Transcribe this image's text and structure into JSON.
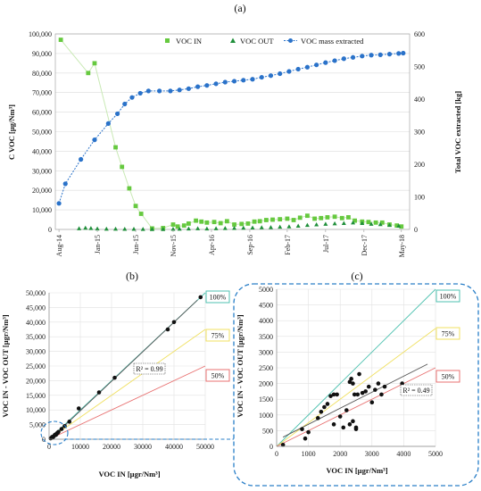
{
  "panel_labels": [
    "(a)",
    "(b)",
    "(c)"
  ],
  "colors": {
    "voc_in": "#66c93f",
    "voc_out": "#1f8f3a",
    "mass": "#2a72c9",
    "line100": "#4fc2b0",
    "line75": "#f0e060",
    "line50": "#e87070",
    "fit": "#555555",
    "dash_box": "#2a7fc8"
  },
  "chart_data": [
    {
      "type": "scatter",
      "panel": "(a)",
      "ylabel": "C VOC [µg/Nm³]",
      "y2label": "Total VOC extracted [kg]",
      "ylim": [
        0,
        100000
      ],
      "y2lim": [
        0,
        600
      ],
      "yticks": [
        "0",
        "10,000",
        "20,000",
        "30,000",
        "40,000",
        "50,000",
        "60,000",
        "70,000",
        "80,000",
        "90,000",
        "100,000"
      ],
      "y2ticks": [
        "0",
        "100",
        "200",
        "300",
        "400",
        "500",
        "600"
      ],
      "xlim": [
        2014.54,
        2018.42
      ],
      "xticks": [
        {
          "label": "Aug-14",
          "x": 2014.58
        },
        {
          "label": "Jan-15",
          "x": 2015.0
        },
        {
          "label": "Jun-15",
          "x": 2015.42
        },
        {
          "label": "Nov-15",
          "x": 2015.83
        },
        {
          "label": "Apr-16",
          "x": 2016.25
        },
        {
          "label": "Sep-16",
          "x": 2016.67
        },
        {
          "label": "Feb-17",
          "x": 2017.08
        },
        {
          "label": "Jul-17",
          "x": 2017.5
        },
        {
          "label": "Dec-17",
          "x": 2017.92
        },
        {
          "label": "May-18",
          "x": 2018.33
        }
      ],
      "legend": [
        "VOC IN",
        "VOC OUT",
        "VOC mass extracted"
      ],
      "series": [
        {
          "name": "VOC IN",
          "axis": "left",
          "marker": "square",
          "line": true,
          "points": [
            [
              2014.6,
              97000
            ],
            [
              2014.9,
              80000
            ],
            [
              2014.97,
              85000
            ],
            [
              2015.2,
              42000
            ],
            [
              2015.27,
              32000
            ],
            [
              2015.35,
              21000
            ],
            [
              2015.42,
              12000
            ],
            [
              2015.48,
              8000
            ],
            [
              2015.6,
              500
            ],
            [
              2015.72,
              700
            ],
            [
              2015.83,
              2500
            ],
            [
              2015.88,
              1500
            ],
            [
              2015.95,
              2000
            ],
            [
              2016.0,
              3000
            ],
            [
              2016.08,
              4500
            ],
            [
              2016.14,
              4000
            ],
            [
              2016.2,
              3500
            ],
            [
              2016.28,
              3800
            ],
            [
              2016.35,
              3200
            ],
            [
              2016.42,
              4200
            ],
            [
              2016.5,
              2500
            ],
            [
              2016.58,
              2800
            ],
            [
              2016.65,
              3000
            ],
            [
              2016.72,
              4000
            ],
            [
              2016.78,
              4200
            ],
            [
              2016.85,
              4800
            ],
            [
              2016.92,
              5000
            ],
            [
              2017.0,
              5200
            ],
            [
              2017.08,
              5500
            ],
            [
              2017.15,
              4800
            ],
            [
              2017.22,
              6000
            ],
            [
              2017.3,
              7000
            ],
            [
              2017.38,
              5500
            ],
            [
              2017.45,
              5800
            ],
            [
              2017.52,
              6200
            ],
            [
              2017.6,
              6500
            ],
            [
              2017.68,
              5800
            ],
            [
              2017.75,
              6200
            ],
            [
              2017.82,
              4500
            ],
            [
              2017.9,
              4000
            ],
            [
              2017.97,
              3800
            ],
            [
              2018.05,
              3500
            ],
            [
              2018.12,
              3500
            ],
            [
              2018.2,
              2500
            ],
            [
              2018.28,
              2000
            ],
            [
              2018.33,
              1500
            ]
          ]
        },
        {
          "name": "VOC OUT",
          "axis": "left",
          "marker": "triangle",
          "line": false,
          "points": [
            [
              2014.8,
              500
            ],
            [
              2014.87,
              800
            ],
            [
              2014.93,
              600
            ],
            [
              2015.0,
              400
            ],
            [
              2015.1,
              300
            ],
            [
              2015.2,
              300
            ],
            [
              2015.3,
              200
            ],
            [
              2015.4,
              200
            ],
            [
              2015.5,
              150
            ],
            [
              2015.6,
              100
            ],
            [
              2015.72,
              100
            ],
            [
              2015.83,
              200
            ],
            [
              2015.9,
              300
            ],
            [
              2016.0,
              400
            ],
            [
              2016.1,
              500
            ],
            [
              2016.2,
              400
            ],
            [
              2016.3,
              500
            ],
            [
              2016.4,
              600
            ],
            [
              2016.5,
              700
            ],
            [
              2016.6,
              800
            ],
            [
              2016.7,
              900
            ],
            [
              2016.8,
              1000
            ],
            [
              2016.9,
              1100
            ],
            [
              2017.0,
              1300
            ],
            [
              2017.1,
              1500
            ],
            [
              2017.2,
              1800
            ],
            [
              2017.3,
              2200
            ],
            [
              2017.4,
              2500
            ],
            [
              2017.5,
              2800
            ],
            [
              2017.6,
              3000
            ],
            [
              2017.7,
              3200
            ],
            [
              2017.8,
              3500
            ],
            [
              2017.9,
              3200
            ],
            [
              2018.0,
              2800
            ],
            [
              2018.1,
              2600
            ],
            [
              2018.2,
              2200
            ],
            [
              2018.3,
              1800
            ]
          ]
        },
        {
          "name": "VOC mass extracted",
          "axis": "right",
          "marker": "circle",
          "line": true,
          "points": [
            [
              2014.58,
              80
            ],
            [
              2014.65,
              140
            ],
            [
              2014.82,
              215
            ],
            [
              2014.97,
              275
            ],
            [
              2015.12,
              325
            ],
            [
              2015.22,
              355
            ],
            [
              2015.3,
              385
            ],
            [
              2015.38,
              405
            ],
            [
              2015.47,
              418
            ],
            [
              2015.56,
              425
            ],
            [
              2015.68,
              425
            ],
            [
              2015.8,
              425
            ],
            [
              2015.9,
              428
            ],
            [
              2016.0,
              432
            ],
            [
              2016.1,
              438
            ],
            [
              2016.2,
              442
            ],
            [
              2016.3,
              447
            ],
            [
              2016.4,
              452
            ],
            [
              2016.5,
              455
            ],
            [
              2016.6,
              458
            ],
            [
              2016.7,
              461
            ],
            [
              2016.8,
              467
            ],
            [
              2016.9,
              472
            ],
            [
              2017.0,
              478
            ],
            [
              2017.1,
              485
            ],
            [
              2017.2,
              492
            ],
            [
              2017.3,
              498
            ],
            [
              2017.4,
              505
            ],
            [
              2017.5,
              512
            ],
            [
              2017.6,
              518
            ],
            [
              2017.7,
              524
            ],
            [
              2017.8,
              528
            ],
            [
              2017.9,
              532
            ],
            [
              2018.0,
              535
            ],
            [
              2018.1,
              536
            ],
            [
              2018.2,
              538
            ],
            [
              2018.3,
              540
            ],
            [
              2018.35,
              541
            ]
          ]
        }
      ]
    },
    {
      "type": "scatter",
      "panel": "(b)",
      "xlabel": "VOC IN [µgr/Nm³]",
      "ylabel": "VOC IN - VOC OUT [µgr/Nm³]",
      "xlim": [
        0,
        50000
      ],
      "ylim": [
        0,
        50000
      ],
      "xticks": [
        "0",
        "10000",
        "20000",
        "30000",
        "40000",
        "50000"
      ],
      "yticks": [
        "0",
        "5,000",
        "10,000",
        "15,000",
        "20,000",
        "25,000",
        "30,000",
        "35,000",
        "40,000",
        "45,000",
        "50,000"
      ],
      "reference_lines": [
        {
          "label": "100%",
          "slope": 1.0
        },
        {
          "label": "75%",
          "slope": 0.75
        },
        {
          "label": "50%",
          "slope": 0.5
        }
      ],
      "fit_label": "R² = 0.99",
      "points": [
        [
          500,
          300
        ],
        [
          800,
          500
        ],
        [
          1000,
          800
        ],
        [
          1200,
          600
        ],
        [
          1500,
          1000
        ],
        [
          1800,
          1400
        ],
        [
          2000,
          1600
        ],
        [
          2200,
          1500
        ],
        [
          2500,
          2000
        ],
        [
          2800,
          2200
        ],
        [
          3000,
          2500
        ],
        [
          4000,
          3500
        ],
        [
          5000,
          4500
        ],
        [
          6500,
          6000
        ],
        [
          9500,
          10500
        ],
        [
          16000,
          16000
        ],
        [
          21000,
          21000
        ],
        [
          38000,
          37500
        ],
        [
          40000,
          40000
        ],
        [
          48500,
          48500
        ]
      ]
    },
    {
      "type": "scatter",
      "panel": "(c)",
      "xlabel": "VOC IN [µgr/Nm³]",
      "ylabel": "VOC IN - VOC OUT [µgr/Nm³]",
      "xlim": [
        0,
        5000
      ],
      "ylim": [
        0,
        5000
      ],
      "xticks": [
        "0",
        "1000",
        "2000",
        "3000",
        "4000",
        "5000"
      ],
      "yticks": [
        "0",
        "500",
        "1000",
        "1500",
        "2000",
        "2500",
        "3000",
        "3500",
        "4000",
        "4500",
        "5000"
      ],
      "reference_lines": [
        {
          "label": "100%",
          "slope": 1.0
        },
        {
          "label": "75%",
          "slope": 0.75
        },
        {
          "label": "50%",
          "slope": 0.5
        }
      ],
      "fit_label": "R² = 0.49",
      "points": [
        [
          200,
          50
        ],
        [
          900,
          250
        ],
        [
          1000,
          450
        ],
        [
          800,
          550
        ],
        [
          1300,
          900
        ],
        [
          1400,
          1100
        ],
        [
          1500,
          1250
        ],
        [
          1600,
          1350
        ],
        [
          1700,
          1600
        ],
        [
          1800,
          1650
        ],
        [
          1900,
          1650
        ],
        [
          1800,
          700
        ],
        [
          2000,
          950
        ],
        [
          2100,
          600
        ],
        [
          2200,
          1150
        ],
        [
          2300,
          700
        ],
        [
          2300,
          2050
        ],
        [
          2350,
          2150
        ],
        [
          2400,
          2000
        ],
        [
          2450,
          1650
        ],
        [
          2400,
          800
        ],
        [
          2500,
          550
        ],
        [
          2500,
          600
        ],
        [
          2550,
          1650
        ],
        [
          2600,
          2300
        ],
        [
          2700,
          1700
        ],
        [
          2800,
          1750
        ],
        [
          2900,
          1900
        ],
        [
          3000,
          1400
        ],
        [
          3100,
          1800
        ],
        [
          3200,
          2000
        ],
        [
          3300,
          1650
        ],
        [
          3400,
          1900
        ],
        [
          3950,
          2000
        ]
      ]
    }
  ]
}
